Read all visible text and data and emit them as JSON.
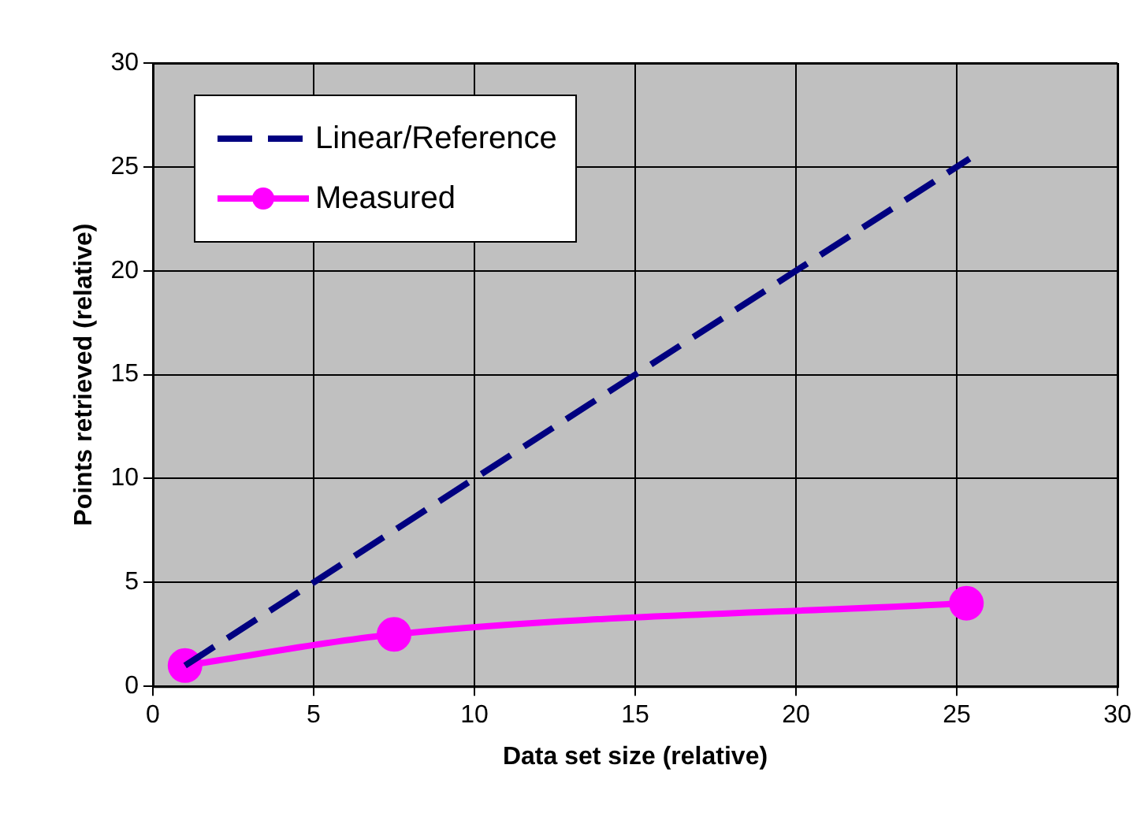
{
  "chart_data": {
    "type": "line",
    "xlabel": "Data set size (relative)",
    "ylabel": "Points retrieved (relative)",
    "xlim": [
      0,
      30
    ],
    "xticks": [
      0,
      5,
      10,
      15,
      20,
      25,
      30
    ],
    "ylim": [
      0,
      30
    ],
    "yticks": [
      0,
      5,
      10,
      15,
      20,
      25,
      30
    ],
    "grid": true,
    "legend": "top left",
    "series": [
      {
        "name": "Linear/Reference",
        "color": "#000080",
        "x": [
          1,
          25.4
        ],
        "values": [
          1,
          25.4
        ],
        "line_style": "dashed",
        "marker": "none"
      },
      {
        "name": "Measured",
        "color": "#ff00ff",
        "x": [
          1,
          7.5,
          25.3
        ],
        "values": [
          1,
          2.5,
          4
        ],
        "line_style": "solid",
        "marker": "circle"
      }
    ]
  }
}
